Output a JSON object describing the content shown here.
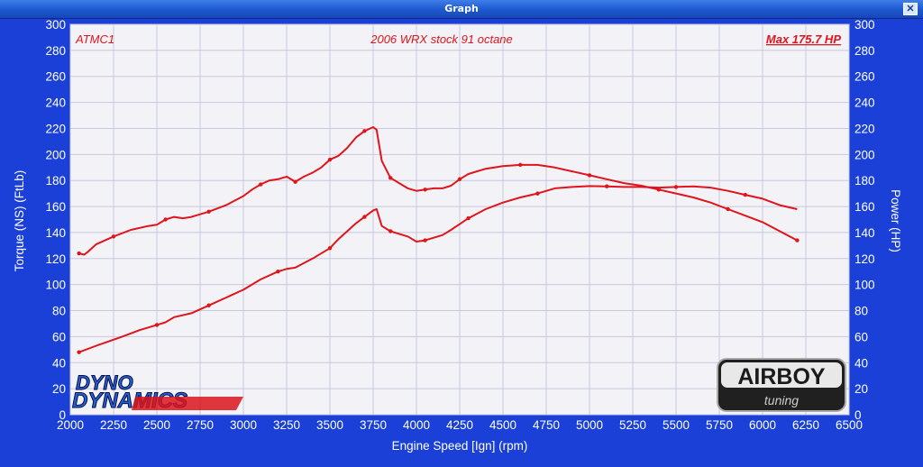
{
  "window": {
    "title": "Graph",
    "close_label": "✕"
  },
  "colors": {
    "background": "#1a40d8",
    "plot_bg": "#f3f3f7",
    "grid": "#c6c8dc",
    "curve": "#e0141b"
  },
  "logos": {
    "dyno_dynamics": "DYNO DYNAMICS",
    "airboy": "AIRBOY",
    "airboy_sub": "tuning"
  },
  "chart_data": {
    "type": "line",
    "title": "2006 WRX stock 91 octane",
    "annotations": {
      "top_left": "ATMC1",
      "top_right": "Max 175.7 HP"
    },
    "xlabel": "Engine Speed [Ign] (rpm)",
    "ylabel": "Torque (NS) (FtLb)",
    "y2label": "Power (HP)",
    "xlim": [
      2000,
      6500
    ],
    "ylim": [
      0,
      300
    ],
    "y2lim": [
      0,
      300
    ],
    "x_ticks": [
      2000,
      2250,
      2500,
      2750,
      3000,
      3250,
      3500,
      3750,
      4000,
      4250,
      4500,
      4750,
      5000,
      5250,
      5500,
      5750,
      6000,
      6250,
      6500
    ],
    "y_ticks": [
      0,
      20,
      40,
      60,
      80,
      100,
      120,
      140,
      160,
      180,
      200,
      220,
      240,
      260,
      280,
      300
    ],
    "grid": true,
    "series": [
      {
        "name": "Torque (NS)",
        "axis": "left",
        "x": [
          2050,
          2080,
          2100,
          2150,
          2250,
          2350,
          2450,
          2500,
          2550,
          2600,
          2650,
          2700,
          2800,
          2900,
          3000,
          3050,
          3100,
          3150,
          3200,
          3250,
          3300,
          3350,
          3400,
          3450,
          3500,
          3550,
          3600,
          3650,
          3700,
          3750,
          3770,
          3800,
          3850,
          3900,
          3950,
          4000,
          4050,
          4100,
          4150,
          4200,
          4250,
          4300,
          4400,
          4500,
          4600,
          4700,
          4800,
          4900,
          5000,
          5100,
          5200,
          5300,
          5400,
          5500,
          5600,
          5700,
          5800,
          5900,
          6000,
          6100,
          6200
        ],
        "y": [
          124,
          123,
          125,
          131,
          137,
          142,
          145,
          146,
          150,
          152,
          151,
          152,
          156,
          161,
          168,
          173,
          177,
          180,
          181,
          183,
          179,
          183,
          186,
          190,
          196,
          199,
          205,
          213,
          218,
          221,
          219,
          195,
          182,
          178,
          174,
          172,
          173,
          174,
          174,
          176,
          181,
          185,
          189,
          191,
          192,
          192,
          190,
          187,
          184,
          181,
          178,
          176,
          173,
          170,
          167,
          163,
          158,
          153,
          148,
          141,
          134
        ]
      },
      {
        "name": "Power",
        "axis": "right",
        "x": [
          2050,
          2150,
          2300,
          2400,
          2500,
          2550,
          2600,
          2700,
          2800,
          2900,
          3000,
          3100,
          3200,
          3250,
          3300,
          3400,
          3500,
          3550,
          3600,
          3650,
          3700,
          3750,
          3770,
          3800,
          3850,
          3900,
          3950,
          4000,
          4050,
          4100,
          4150,
          4200,
          4300,
          4400,
          4500,
          4600,
          4700,
          4800,
          4900,
          5000,
          5100,
          5200,
          5300,
          5400,
          5500,
          5600,
          5700,
          5800,
          5900,
          6000,
          6100,
          6200
        ],
        "y": [
          48,
          53,
          60,
          65,
          69,
          71,
          75,
          78,
          84,
          90,
          96,
          104,
          110,
          112,
          113,
          120,
          128,
          135,
          141,
          147,
          152,
          157,
          158,
          145,
          141,
          139,
          137,
          133,
          134,
          136,
          138,
          142,
          151,
          158,
          163,
          167,
          170,
          174,
          175,
          175.7,
          175.5,
          175,
          175,
          174.5,
          175,
          175.5,
          174.5,
          172,
          169,
          166,
          161,
          158
        ]
      }
    ]
  }
}
